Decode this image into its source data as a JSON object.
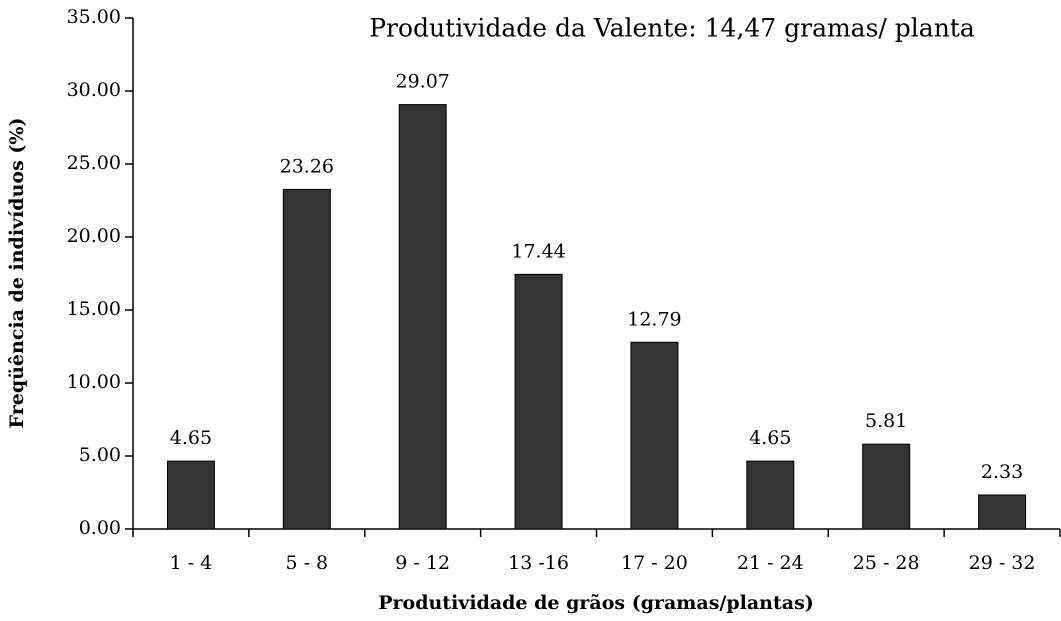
{
  "chart_data": {
    "type": "bar",
    "title": "Produtividade da Valente: 14,47 gramas/ planta",
    "x_label": "Produtividade de grãos (gramas/plantas)",
    "y_label": "Freqüência de indivíduos (%)",
    "categories": [
      "1 - 4",
      "5 - 8",
      "9 - 12",
      "13 -16",
      "17 - 20",
      "21 - 24",
      "25 - 28",
      "29 - 32"
    ],
    "values": [
      4.65,
      23.26,
      29.07,
      17.44,
      12.79,
      4.65,
      5.81,
      2.33
    ],
    "color": "#333333",
    "ylim": [
      0,
      35
    ],
    "yticks": [
      {
        "value": 0,
        "label": "0.00"
      },
      {
        "value": 5,
        "label": "5.00"
      },
      {
        "value": 10,
        "label": "10.00"
      },
      {
        "value": 15,
        "label": "15.00"
      },
      {
        "value": 20,
        "label": "20.00"
      },
      {
        "value": 25,
        "label": "25.00"
      },
      {
        "value": 30,
        "label": "30.00"
      },
      {
        "value": 35,
        "label": "35.00"
      }
    ],
    "grid": false
  }
}
